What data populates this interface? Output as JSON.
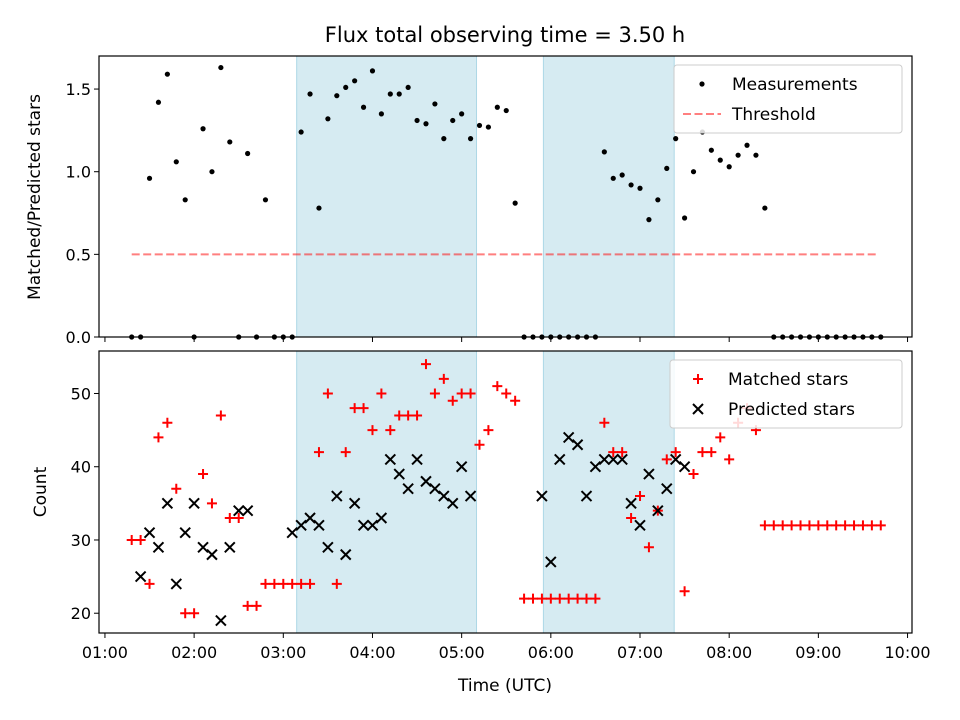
{
  "chart_data": [
    {
      "type": "scatter",
      "title": "Flux total observing time = 3.50 h",
      "ylabel": "Matched/Predicted stars",
      "xlabel": "",
      "xlim": [
        "00:56",
        "10:03"
      ],
      "ylim": [
        0,
        1.7
      ],
      "yticks": [
        0.0,
        0.5,
        1.0,
        1.5
      ],
      "ytick_labels": [
        "0.0",
        "0.5",
        "1.0",
        "1.5"
      ],
      "highlight_color": "#add8e6",
      "highlight_intervals": [
        [
          "03:09",
          "05:10"
        ],
        [
          "05:55",
          "07:23"
        ]
      ],
      "legend_position": "upper right",
      "threshold": {
        "name": "Threshold",
        "y": 0.5,
        "x_range": [
          "01:18",
          "09:40"
        ],
        "color": "#ff0000",
        "style": "dashed"
      },
      "series": [
        {
          "name": "Measurements",
          "marker": "dot",
          "color": "#000000",
          "x": [
            "01:18",
            "01:24",
            "01:30",
            "01:36",
            "01:42",
            "01:48",
            "01:54",
            "02:00",
            "02:06",
            "02:12",
            "02:18",
            "02:24",
            "02:30",
            "02:36",
            "02:42",
            "02:48",
            "02:54",
            "03:00",
            "03:06",
            "03:12",
            "03:18",
            "03:24",
            "03:30",
            "03:36",
            "03:42",
            "03:48",
            "03:54",
            "04:00",
            "04:06",
            "04:12",
            "04:18",
            "04:24",
            "04:30",
            "04:36",
            "04:42",
            "04:48",
            "04:54",
            "05:00",
            "05:06",
            "05:12",
            "05:18",
            "05:24",
            "05:30",
            "05:36",
            "05:42",
            "05:48",
            "05:54",
            "06:00",
            "06:06",
            "06:12",
            "06:18",
            "06:24",
            "06:30",
            "06:36",
            "06:42",
            "06:48",
            "06:54",
            "07:00",
            "07:06",
            "07:12",
            "07:18",
            "07:24",
            "07:30",
            "07:36",
            "07:42",
            "07:48",
            "07:54",
            "08:00",
            "08:06",
            "08:12",
            "08:18",
            "08:24",
            "08:30",
            "08:36",
            "08:42",
            "08:48",
            "08:54",
            "09:00",
            "09:06",
            "09:12",
            "09:18",
            "09:24",
            "09:30",
            "09:36",
            "09:42"
          ],
          "y": [
            0,
            0,
            0.96,
            1.42,
            1.59,
            1.06,
            0.83,
            0,
            1.26,
            1,
            1.63,
            1.18,
            0,
            1.11,
            0,
            0.83,
            0,
            0,
            0,
            1.24,
            1.47,
            0.78,
            1.32,
            1.46,
            1.51,
            1.55,
            1.39,
            1.61,
            1.35,
            1.47,
            1.47,
            1.51,
            1.31,
            1.29,
            1.41,
            1.2,
            1.31,
            1.35,
            1.2,
            1.28,
            1.27,
            1.39,
            1.37,
            0.81,
            0,
            0,
            0,
            0,
            0,
            0,
            0,
            0,
            0,
            1.12,
            0.96,
            0.98,
            0.92,
            0.9,
            0.71,
            0.83,
            1.02,
            1.2,
            0.72,
            1,
            1.24,
            1.13,
            1.07,
            1.03,
            1.1,
            1.16,
            1.1,
            0.78,
            0,
            0,
            0,
            0,
            0,
            0,
            0,
            0,
            0,
            0,
            0,
            0,
            0
          ]
        }
      ]
    },
    {
      "type": "scatter",
      "title": "",
      "ylabel": "Count",
      "xlabel": "Time (UTC)",
      "xlim": [
        "00:56",
        "10:03"
      ],
      "ylim": [
        17.3,
        55.8
      ],
      "xticks": [
        "01:00",
        "02:00",
        "03:00",
        "04:00",
        "05:00",
        "06:00",
        "07:00",
        "08:00",
        "09:00",
        "10:00"
      ],
      "yticks": [
        20,
        30,
        40,
        50
      ],
      "ytick_labels": [
        "20",
        "30",
        "40",
        "50"
      ],
      "highlight_color": "#add8e6",
      "highlight_intervals": [
        [
          "03:09",
          "05:10"
        ],
        [
          "05:55",
          "07:23"
        ]
      ],
      "legend_position": "upper right",
      "series": [
        {
          "name": "Matched stars",
          "marker": "plus",
          "color": "#ff0000",
          "x": [
            "01:18",
            "01:24",
            "01:30",
            "01:36",
            "01:42",
            "01:48",
            "01:54",
            "02:00",
            "02:06",
            "02:12",
            "02:18",
            "02:24",
            "02:30",
            "02:36",
            "02:42",
            "02:48",
            "02:54",
            "03:00",
            "03:06",
            "03:12",
            "03:18",
            "03:24",
            "03:30",
            "03:36",
            "03:42",
            "03:48",
            "03:54",
            "04:00",
            "04:06",
            "04:12",
            "04:18",
            "04:24",
            "04:30",
            "04:36",
            "04:42",
            "04:48",
            "04:54",
            "05:00",
            "05:06",
            "05:12",
            "05:18",
            "05:24",
            "05:30",
            "05:36",
            "05:42",
            "05:48",
            "05:54",
            "06:00",
            "06:06",
            "06:12",
            "06:18",
            "06:24",
            "06:30",
            "06:36",
            "06:42",
            "06:48",
            "06:54",
            "07:00",
            "07:06",
            "07:12",
            "07:18",
            "07:24",
            "07:30",
            "07:36",
            "07:42",
            "07:48",
            "07:54",
            "08:00",
            "08:06",
            "08:12",
            "08:18",
            "08:24",
            "08:30",
            "08:36",
            "08:42",
            "08:48",
            "08:54",
            "09:00",
            "09:06",
            "09:12",
            "09:18",
            "09:24",
            "09:30",
            "09:36",
            "09:42"
          ],
          "y": [
            30,
            30,
            24,
            44,
            46,
            37,
            20,
            20,
            39,
            35,
            47,
            33,
            33,
            21,
            21,
            24,
            24,
            24,
            24,
            24,
            24,
            42,
            50,
            24,
            42,
            48,
            48,
            45,
            50,
            45,
            47,
            47,
            47,
            54,
            50,
            52,
            49,
            50,
            50,
            43,
            45,
            51,
            50,
            49,
            22,
            22,
            22,
            22,
            22,
            22,
            22,
            22,
            22,
            46,
            42,
            42,
            33,
            36,
            29,
            34,
            41,
            42,
            23,
            39,
            42,
            42,
            44,
            41,
            46,
            48,
            45,
            32,
            32,
            32,
            32,
            32,
            32,
            32,
            32,
            32,
            32,
            32,
            32,
            32,
            32
          ]
        },
        {
          "name": "Predicted stars",
          "marker": "x",
          "color": "#000000",
          "x": [
            "01:24",
            "01:30",
            "01:36",
            "01:42",
            "01:48",
            "01:54",
            "02:00",
            "02:06",
            "02:12",
            "02:18",
            "02:24",
            "02:30",
            "02:36",
            "03:06",
            "03:12",
            "03:18",
            "03:24",
            "03:30",
            "03:36",
            "03:42",
            "03:48",
            "03:54",
            "04:00",
            "04:06",
            "04:12",
            "04:18",
            "04:24",
            "04:30",
            "04:36",
            "04:42",
            "04:48",
            "04:54",
            "05:00",
            "05:06",
            "05:54",
            "06:00",
            "06:06",
            "06:12",
            "06:18",
            "06:24",
            "06:30",
            "06:36",
            "06:42",
            "06:48",
            "06:54",
            "07:00",
            "07:06",
            "07:12",
            "07:18",
            "07:24",
            "07:30"
          ],
          "y": [
            25,
            31,
            29,
            35,
            24,
            31,
            35,
            29,
            28,
            19,
            29,
            34,
            34,
            31,
            32,
            33,
            32,
            29,
            36,
            28,
            35,
            32,
            32,
            33,
            41,
            39,
            37,
            41,
            38,
            37,
            36,
            35,
            40,
            36,
            36,
            27,
            41,
            44,
            43,
            36,
            40,
            41,
            41,
            41,
            35,
            32,
            39,
            34,
            37,
            41,
            40
          ]
        }
      ]
    }
  ]
}
